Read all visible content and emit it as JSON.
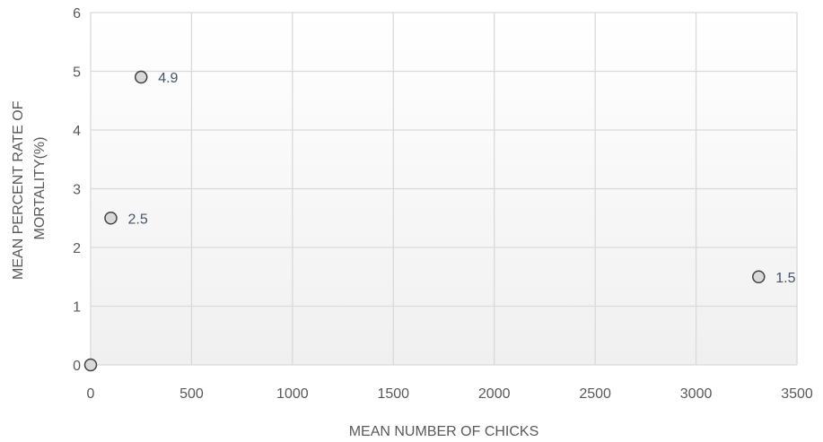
{
  "chart_data": {
    "type": "scatter",
    "title": "",
    "xlabel": "MEAN NUMBER OF CHICKS",
    "ylabel_lines": [
      "MEAN PERCENT RATE OF",
      "MORTALITY(%)"
    ],
    "xlim": [
      0,
      3500
    ],
    "ylim": [
      0,
      6
    ],
    "xticks": [
      0,
      500,
      1000,
      1500,
      2000,
      2500,
      3000,
      3500
    ],
    "yticks": [
      0,
      1,
      2,
      3,
      4,
      5,
      6
    ],
    "grid": true,
    "legend": "none",
    "points": [
      {
        "x": 0,
        "y": 0,
        "label": ""
      },
      {
        "x": 100,
        "y": 2.5,
        "label": "2.5"
      },
      {
        "x": 250,
        "y": 4.9,
        "label": "4.9"
      },
      {
        "x": 3310,
        "y": 1.5,
        "label": "1.5"
      }
    ],
    "colors": {
      "marker_fill": "#d9d9d9",
      "marker_stroke": "#404040",
      "grid": "#d9d9d9",
      "plot_gradient_top": "#ffffff",
      "plot_gradient_bottom": "#f0f0f0"
    }
  }
}
